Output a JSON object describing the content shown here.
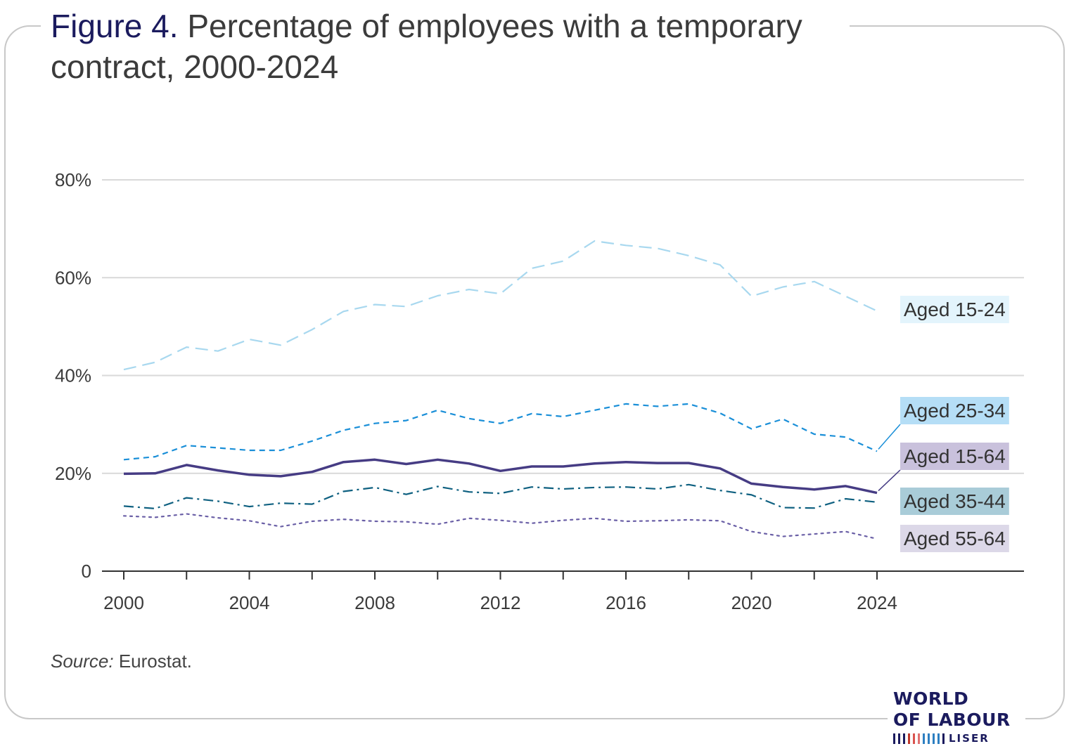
{
  "figure_label": "Figure 4.",
  "title_text": "Percentage of employees with a temporary contract, 2000-2024",
  "source": {
    "label": "Source:",
    "text": "Eurostat."
  },
  "logo": {
    "line1": "WORLD",
    "line2": "OF LABOUR",
    "line3": "LISER",
    "bar_colors": [
      "#1b1b5e",
      "#1b1b5e",
      "#1b1b5e",
      "#c0392b",
      "#d9534f",
      "#e07070",
      "#2d7fc1",
      "#2d7fc1",
      "#2d7fc1",
      "#2d7fc1",
      "#1b1b5e"
    ]
  },
  "colors": {
    "figure_label": "#1b1b5e",
    "title": "#3b3b3b",
    "gridline": "#d9d9d9",
    "axis": "#333333"
  },
  "chart_data": {
    "type": "line",
    "title": "Percentage of employees with a temporary contract, 2000-2024",
    "xlabel": "",
    "ylabel": "",
    "x": [
      2000,
      2001,
      2002,
      2003,
      2004,
      2005,
      2006,
      2007,
      2008,
      2009,
      2010,
      2011,
      2012,
      2013,
      2014,
      2015,
      2016,
      2017,
      2018,
      2019,
      2020,
      2021,
      2022,
      2023,
      2024
    ],
    "x_ticks": [
      "2000",
      "2004",
      "2008",
      "2012",
      "2016",
      "2020",
      "2024"
    ],
    "xlim": [
      2000,
      2024
    ],
    "ylim": [
      0,
      80
    ],
    "y_ticks": [
      {
        "value": 0,
        "label": "0"
      },
      {
        "value": 20,
        "label": "20%"
      },
      {
        "value": 40,
        "label": "40%"
      },
      {
        "value": 60,
        "label": "60%"
      },
      {
        "value": 80,
        "label": "80%"
      }
    ],
    "grid": true,
    "legend": "direct labels at right",
    "series": [
      {
        "name": "Aged 15-24",
        "color": "#a8d8ef",
        "dash": "long-dash",
        "label_bg": "#e3f4fc",
        "values": [
          41.2,
          42.7,
          45.8,
          45.0,
          47.4,
          46.2,
          49.4,
          53.1,
          54.5,
          54.1,
          56.3,
          57.6,
          56.7,
          61.9,
          63.4,
          67.5,
          66.6,
          66.0,
          64.5,
          62.6,
          56.2,
          58.1,
          59.2,
          56.2,
          53.2
        ]
      },
      {
        "name": "Aged 25-34",
        "color": "#1a8fd8",
        "dash": "short-dash",
        "label_bg": "#b5def6",
        "values": [
          22.8,
          23.4,
          25.7,
          25.2,
          24.7,
          24.7,
          26.6,
          28.8,
          30.2,
          30.8,
          32.9,
          31.2,
          30.2,
          32.2,
          31.6,
          32.9,
          34.2,
          33.7,
          34.2,
          32.3,
          29.1,
          31.1,
          28.0,
          27.4,
          24.5
        ]
      },
      {
        "name": "Aged 15-64",
        "color": "#463c84",
        "dash": "solid",
        "label_bg": "#c9c1dc",
        "values": [
          19.9,
          20.0,
          21.7,
          20.6,
          19.7,
          19.4,
          20.3,
          22.3,
          22.8,
          21.9,
          22.8,
          22.0,
          20.5,
          21.4,
          21.4,
          22.0,
          22.3,
          22.1,
          22.1,
          21.0,
          17.9,
          17.2,
          16.7,
          17.4,
          16.0
        ]
      },
      {
        "name": "Aged 35-44",
        "color": "#0e6080",
        "dash": "dash-dot",
        "label_bg": "#a9ccd8",
        "values": [
          13.3,
          12.8,
          15.0,
          14.3,
          13.2,
          13.9,
          13.7,
          16.3,
          17.1,
          15.7,
          17.3,
          16.2,
          15.9,
          17.2,
          16.8,
          17.1,
          17.2,
          16.8,
          17.7,
          16.5,
          15.6,
          13.0,
          12.9,
          14.8,
          14.1
        ]
      },
      {
        "name": "Aged 55-64",
        "color": "#6a5fa6",
        "dash": "dotted",
        "label_bg": "#dcd8e8",
        "values": [
          11.3,
          11.0,
          11.7,
          10.9,
          10.3,
          9.1,
          10.2,
          10.6,
          10.2,
          10.1,
          9.6,
          10.8,
          10.4,
          9.8,
          10.4,
          10.8,
          10.2,
          10.3,
          10.5,
          10.3,
          8.1,
          7.1,
          7.6,
          8.1,
          6.6
        ]
      }
    ]
  }
}
